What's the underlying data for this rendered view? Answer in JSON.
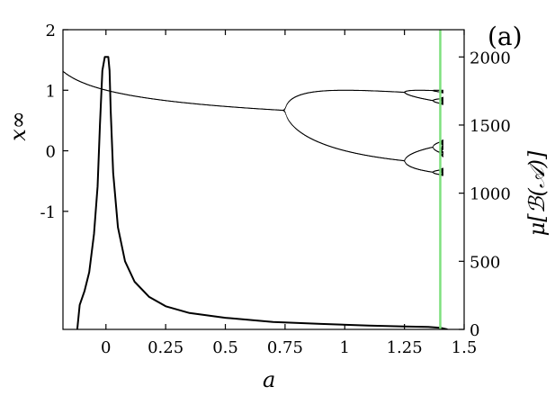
{
  "chart_data": {
    "type": "line",
    "panel_label": "(a)",
    "xlabel": "a",
    "ylabel_left": "x∞",
    "ylabel_right": "μ[ℬ(𝒜)]",
    "xlim": [
      -0.18,
      1.5
    ],
    "ylim_left": [
      -2.95,
      2.0
    ],
    "ylim_right": [
      0,
      2200
    ],
    "x_ticks": [
      {
        "value": 0,
        "label": "0"
      },
      {
        "value": 0.25,
        "label": "0.25"
      },
      {
        "value": 0.5,
        "label": "0.5"
      },
      {
        "value": 0.75,
        "label": "0.75"
      },
      {
        "value": 1,
        "label": "1"
      },
      {
        "value": 1.25,
        "label": "1.25"
      },
      {
        "value": 1.5,
        "label": "1.5"
      }
    ],
    "y_ticks_left": [
      {
        "value": 2,
        "label": "2"
      },
      {
        "value": 1,
        "label": "1"
      },
      {
        "value": 0,
        "label": "0"
      },
      {
        "value": -1,
        "label": "-1"
      }
    ],
    "y_ticks_right": [
      {
        "value": 2000,
        "label": "2000"
      },
      {
        "value": 1500,
        "label": "1500"
      },
      {
        "value": 1000,
        "label": "1000"
      },
      {
        "value": 500,
        "label": "500"
      },
      {
        "value": 0,
        "label": "0"
      }
    ],
    "bifurcation": {
      "description_series": "logistic map x_{n+1} = 1 - a x_n^2 (left axis)",
      "a_start": -0.25,
      "a_end": 1.41,
      "color": "#000000"
    },
    "basin_measure": {
      "axis": "right",
      "color": "#000000",
      "x": [
        -0.12,
        -0.11,
        -0.09,
        -0.07,
        -0.05,
        -0.035,
        -0.025,
        -0.015,
        -0.005,
        0.0,
        0.005,
        0.01,
        0.015,
        0.02,
        0.03,
        0.05,
        0.08,
        0.12,
        0.18,
        0.25,
        0.35,
        0.5,
        0.7,
        0.9,
        1.1,
        1.25,
        1.35,
        1.4,
        1.43
      ],
      "y": [
        0,
        180,
        280,
        420,
        700,
        1050,
        1500,
        1900,
        2000,
        2000,
        2000,
        2000,
        1900,
        1600,
        1150,
        750,
        500,
        350,
        240,
        170,
        120,
        85,
        55,
        40,
        28,
        22,
        18,
        12,
        0
      ]
    },
    "vertical_marker": {
      "x": 1.4,
      "color": "#7ee07e"
    }
  }
}
